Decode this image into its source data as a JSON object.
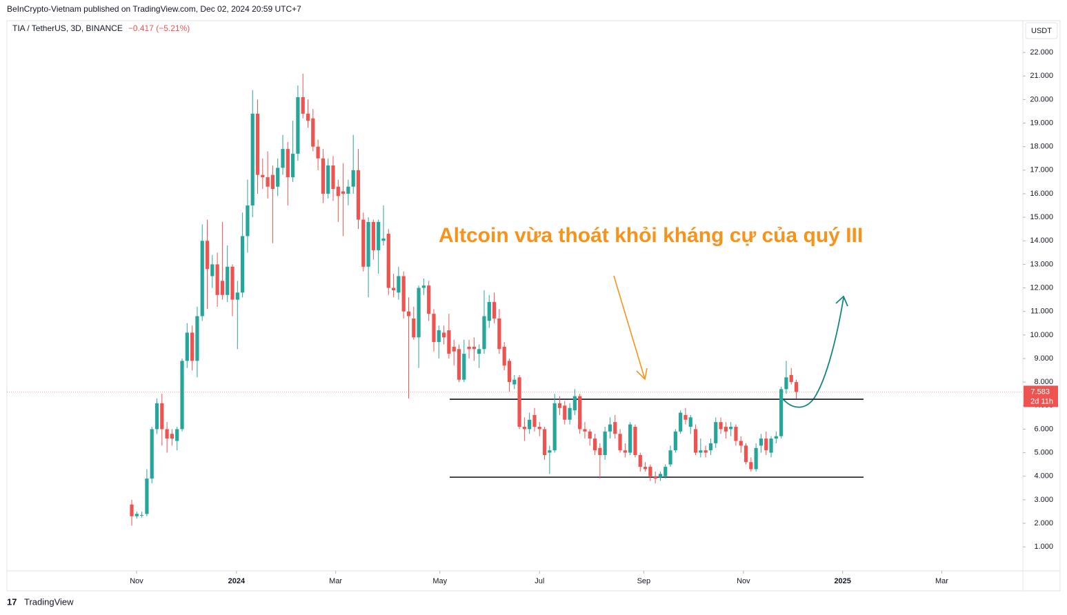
{
  "header": "BeInCrypto-Vietnam published on TradingView.com, Dec 02, 2024 20:59 UTC+7",
  "footer": "TradingView",
  "chart_data": {
    "type": "candlestick",
    "symbol": "TIA / TetherUS, 3D, BINANCE",
    "change": "−0.417 (−5.21%)",
    "currency": "USDT",
    "countdown": "2d 11h",
    "annotation": "Altcoin vừa thoát khỏi kháng cự của quý III",
    "up_color": "#26a69a",
    "down_color": "#ef5350",
    "levels": [
      7.27,
      3.96
    ],
    "xlim": [
      -24.8,
      177
    ],
    "xticks": [
      {
        "value": 0.96,
        "label": "Nov"
      },
      {
        "value": 20.8,
        "label": "2024"
      },
      {
        "value": 40.5,
        "label": "Mar"
      },
      {
        "value": 61.2,
        "label": "May"
      },
      {
        "value": 81,
        "label": "Jul"
      },
      {
        "value": 101.7,
        "label": "Sep"
      },
      {
        "value": 121.5,
        "label": "Nov"
      },
      {
        "value": 141.2,
        "label": "2025"
      },
      {
        "value": 160.9,
        "label": "Mar"
      }
    ],
    "ylim": [
      -0.02,
      23.35
    ],
    "yticks": [
      {
        "value": 1,
        "label": "1.000"
      },
      {
        "value": 2,
        "label": "2.000"
      },
      {
        "value": 3,
        "label": "3.000"
      },
      {
        "value": 4,
        "label": "4.000"
      },
      {
        "value": 5,
        "label": "5.000"
      },
      {
        "value": 6,
        "label": "6.000"
      },
      {
        "value": 7,
        "label": "7.000"
      },
      {
        "value": 8,
        "label": "8.000"
      },
      {
        "value": 9,
        "label": "9.000"
      },
      {
        "value": 10,
        "label": "10.000"
      },
      {
        "value": 11,
        "label": "11.000"
      },
      {
        "value": 12,
        "label": "12.000"
      },
      {
        "value": 13,
        "label": "13.000"
      },
      {
        "value": 14,
        "label": "14.000"
      },
      {
        "value": 15,
        "label": "15.000"
      },
      {
        "value": 16,
        "label": "16.000"
      },
      {
        "value": 17,
        "label": "17.000"
      },
      {
        "value": 18,
        "label": "18.000"
      },
      {
        "value": 19,
        "label": "19.000"
      },
      {
        "value": 20,
        "label": "20.000"
      },
      {
        "value": 21,
        "label": "21.000"
      },
      {
        "value": 22,
        "label": "22.000"
      }
    ],
    "candles": [
      [
        2.8,
        3.0,
        1.9,
        2.3
      ],
      [
        2.3,
        2.5,
        2.2,
        2.4
      ],
      [
        2.35,
        2.5,
        2.25,
        2.35
      ],
      [
        2.4,
        4.3,
        2.3,
        3.9
      ],
      [
        3.9,
        6.1,
        3.7,
        6.0
      ],
      [
        6.0,
        7.3,
        5.8,
        7.1
      ],
      [
        7.1,
        7.5,
        5.3,
        6.0
      ],
      [
        6.0,
        6.3,
        5.0,
        5.6
      ],
      [
        5.8,
        6.0,
        5.3,
        5.6
      ],
      [
        5.5,
        6.1,
        5.1,
        6.0
      ],
      [
        6.0,
        9.0,
        5.9,
        8.9
      ],
      [
        8.9,
        10.5,
        8.6,
        10.1
      ],
      [
        10.1,
        10.4,
        8.5,
        8.9
      ],
      [
        8.9,
        11.2,
        8.2,
        10.8
      ],
      [
        10.8,
        14.7,
        10.6,
        14.0
      ],
      [
        14.0,
        14.9,
        11.1,
        12.8
      ],
      [
        12.5,
        13.4,
        12.0,
        13.0
      ],
      [
        13.0,
        13.5,
        11.2,
        11.7
      ],
      [
        12.3,
        14.8,
        11.5,
        11.7
      ],
      [
        11.7,
        13.8,
        11.4,
        12.9
      ],
      [
        12.9,
        13.0,
        10.8,
        11.5
      ],
      [
        11.5,
        12.3,
        9.4,
        11.8
      ],
      [
        11.8,
        15.2,
        11.6,
        14.2
      ],
      [
        14.2,
        16.6,
        13.5,
        15.5
      ],
      [
        15.5,
        20.4,
        15.0,
        19.4
      ],
      [
        19.4,
        20.0,
        16.0,
        16.8
      ],
      [
        16.8,
        17.5,
        16.2,
        16.7
      ],
      [
        16.7,
        17.8,
        15.8,
        16.3
      ],
      [
        16.8,
        17.2,
        13.9,
        16.2
      ],
      [
        16.3,
        17.5,
        15.9,
        17.1
      ],
      [
        17.1,
        18.5,
        16.8,
        17.9
      ],
      [
        17.9,
        18.2,
        15.5,
        16.7
      ],
      [
        16.7,
        19.1,
        16.5,
        17.7
      ],
      [
        17.7,
        20.6,
        17.4,
        20.1
      ],
      [
        20.1,
        21.1,
        19.2,
        19.4
      ],
      [
        19.4,
        20.0,
        18.8,
        19.1
      ],
      [
        19.2,
        19.6,
        17.8,
        18.0
      ],
      [
        18.0,
        18.3,
        17.0,
        17.5
      ],
      [
        17.5,
        17.9,
        15.6,
        16.0
      ],
      [
        16.0,
        17.5,
        15.8,
        17.2
      ],
      [
        17.2,
        17.6,
        15.7,
        16.2
      ],
      [
        16.3,
        16.6,
        14.8,
        15.9
      ],
      [
        16.1,
        17.3,
        14.2,
        16.0
      ],
      [
        16.0,
        16.6,
        15.5,
        16.3
      ],
      [
        16.3,
        18.5,
        16.0,
        17.0
      ],
      [
        17.0,
        17.9,
        14.5,
        14.9
      ],
      [
        14.9,
        15.2,
        12.7,
        12.9
      ],
      [
        12.9,
        15.0,
        11.6,
        14.8
      ],
      [
        14.8,
        14.9,
        13.2,
        13.6
      ],
      [
        13.6,
        14.9,
        12.6,
        14.8
      ],
      [
        14.0,
        15.5,
        13.8,
        14.1
      ],
      [
        14.3,
        14.5,
        11.7,
        12.0
      ],
      [
        12.0,
        12.6,
        11.6,
        11.9
      ],
      [
        11.8,
        12.9,
        11.5,
        12.5
      ],
      [
        12.5,
        12.7,
        10.7,
        11.0
      ],
      [
        11.0,
        11.6,
        7.3,
        10.8
      ],
      [
        10.7,
        11.2,
        9.8,
        9.9
      ],
      [
        9.9,
        12.1,
        8.6,
        12.0
      ],
      [
        12.0,
        12.4,
        11.7,
        12.1
      ],
      [
        12.1,
        12.3,
        10.6,
        10.9
      ],
      [
        10.9,
        11.1,
        9.3,
        9.7
      ],
      [
        9.7,
        10.4,
        9.0,
        10.2
      ],
      [
        10.1,
        10.4,
        9.6,
        9.9
      ],
      [
        10.2,
        10.9,
        9.0,
        9.2
      ],
      [
        9.5,
        9.8,
        8.7,
        9.3
      ],
      [
        9.4,
        9.6,
        8.0,
        8.1
      ],
      [
        8.1,
        9.8,
        8.0,
        9.2
      ],
      [
        9.5,
        9.8,
        9.0,
        9.4
      ],
      [
        9.5,
        9.9,
        8.9,
        9.4
      ],
      [
        9.2,
        9.6,
        8.6,
        9.4
      ],
      [
        9.4,
        11.9,
        9.2,
        10.8
      ],
      [
        10.6,
        11.7,
        10.3,
        11.4
      ],
      [
        11.4,
        11.8,
        10.5,
        10.7
      ],
      [
        10.7,
        11.1,
        9.2,
        9.4
      ],
      [
        9.5,
        9.7,
        8.5,
        8.7
      ],
      [
        8.9,
        9.0,
        7.6,
        8.0
      ],
      [
        7.9,
        8.3,
        7.7,
        8.1
      ],
      [
        8.2,
        8.3,
        6.0,
        6.1
      ],
      [
        6.1,
        6.5,
        5.5,
        6.0
      ],
      [
        6.0,
        6.7,
        5.8,
        6.4
      ],
      [
        6.6,
        6.9,
        5.9,
        6.1
      ],
      [
        6.1,
        6.3,
        5.7,
        6.0
      ],
      [
        6.0,
        6.1,
        4.7,
        4.9
      ],
      [
        5.0,
        5.3,
        4.1,
        5.1
      ],
      [
        5.1,
        7.5,
        5.0,
        7.1
      ],
      [
        7.1,
        7.4,
        6.6,
        6.9
      ],
      [
        7.0,
        7.2,
        6.2,
        6.4
      ],
      [
        6.4,
        7.1,
        6.2,
        6.9
      ],
      [
        6.8,
        7.7,
        6.6,
        7.4
      ],
      [
        7.4,
        7.5,
        5.8,
        6.0
      ],
      [
        6.0,
        6.3,
        5.6,
        5.9
      ],
      [
        5.9,
        6.0,
        5.3,
        5.6
      ],
      [
        5.6,
        5.8,
        4.9,
        5.1
      ],
      [
        5.2,
        5.4,
        3.9,
        4.9
      ],
      [
        4.9,
        6.1,
        4.7,
        5.9
      ],
      [
        5.9,
        6.5,
        5.6,
        6.2
      ],
      [
        6.3,
        6.6,
        5.6,
        5.8
      ],
      [
        5.8,
        6.0,
        5.0,
        5.1
      ],
      [
        5.1,
        5.4,
        4.8,
        5.0
      ],
      [
        5.0,
        6.3,
        4.9,
        6.2
      ],
      [
        6.1,
        6.2,
        4.8,
        4.9
      ],
      [
        4.9,
        5.0,
        4.2,
        4.4
      ],
      [
        4.4,
        4.6,
        4.2,
        4.3
      ],
      [
        4.4,
        4.5,
        3.8,
        4.0
      ],
      [
        4.0,
        4.2,
        3.7,
        3.9
      ],
      [
        3.95,
        4.2,
        3.8,
        4.1
      ],
      [
        4.0,
        4.5,
        3.9,
        4.4
      ],
      [
        4.5,
        5.3,
        4.4,
        5.1
      ],
      [
        5.1,
        6.0,
        5.0,
        5.9
      ],
      [
        5.9,
        6.8,
        5.8,
        6.7
      ],
      [
        6.6,
        6.9,
        6.2,
        6.4
      ],
      [
        6.1,
        6.6,
        5.8,
        6.5
      ],
      [
        6.0,
        6.2,
        4.9,
        5.0
      ],
      [
        5.0,
        5.6,
        4.8,
        5.1
      ],
      [
        5.1,
        5.3,
        4.8,
        5.0
      ],
      [
        5.1,
        5.6,
        4.9,
        5.4
      ],
      [
        5.4,
        6.5,
        5.2,
        6.3
      ],
      [
        6.3,
        6.5,
        5.8,
        6.0
      ],
      [
        6.1,
        6.3,
        5.6,
        5.9
      ],
      [
        6.0,
        6.3,
        5.7,
        6.1
      ],
      [
        6.1,
        6.2,
        5.3,
        5.5
      ],
      [
        5.5,
        5.7,
        5.0,
        5.3
      ],
      [
        5.3,
        5.4,
        4.5,
        4.6
      ],
      [
        4.6,
        4.8,
        4.2,
        4.3
      ],
      [
        4.3,
        5.4,
        4.2,
        5.2
      ],
      [
        5.3,
        5.8,
        5.0,
        5.6
      ],
      [
        5.6,
        5.9,
        4.9,
        5.1
      ],
      [
        5.0,
        5.7,
        4.8,
        5.6
      ],
      [
        5.6,
        5.9,
        5.4,
        5.7
      ],
      [
        5.7,
        7.8,
        5.6,
        7.7
      ],
      [
        7.7,
        8.9,
        7.5,
        8.2
      ],
      [
        8.3,
        8.6,
        7.9,
        8.0
      ],
      [
        8.0,
        8.1,
        7.3,
        7.583
      ]
    ]
  }
}
